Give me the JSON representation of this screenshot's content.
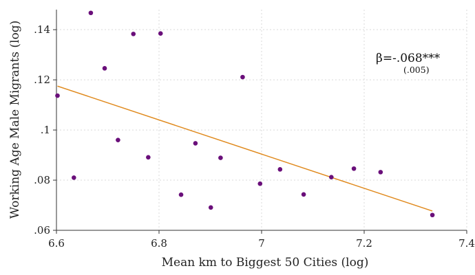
{
  "chart_data": {
    "type": "scatter",
    "xlabel": "Mean km to Biggest 50 Cities (log)",
    "ylabel": "Working Age Male Migrants (log)",
    "xlim": [
      6.6,
      7.4
    ],
    "ylim": [
      0.06,
      0.148
    ],
    "x_ticks": [
      6.6,
      6.8,
      7.0,
      7.2,
      7.4
    ],
    "x_tick_labels": [
      "6.6",
      "6.8",
      "7",
      "7.2",
      "7.4"
    ],
    "y_ticks": [
      0.06,
      0.08,
      0.1,
      0.12,
      0.14
    ],
    "y_tick_labels": [
      ".06",
      ".08",
      ".1",
      ".12",
      ".14"
    ],
    "grid": true,
    "colors": {
      "points": "#6a0f7a",
      "fit_line": "#e08a1e"
    },
    "points": [
      {
        "x": 6.602,
        "y": 0.1137
      },
      {
        "x": 6.634,
        "y": 0.081
      },
      {
        "x": 6.667,
        "y": 0.1467
      },
      {
        "x": 6.694,
        "y": 0.1246
      },
      {
        "x": 6.72,
        "y": 0.096
      },
      {
        "x": 6.75,
        "y": 0.1383
      },
      {
        "x": 6.779,
        "y": 0.0891
      },
      {
        "x": 6.803,
        "y": 0.1385
      },
      {
        "x": 6.843,
        "y": 0.0742
      },
      {
        "x": 6.871,
        "y": 0.0947
      },
      {
        "x": 6.901,
        "y": 0.0691
      },
      {
        "x": 6.92,
        "y": 0.0889
      },
      {
        "x": 6.963,
        "y": 0.1211
      },
      {
        "x": 6.997,
        "y": 0.0786
      },
      {
        "x": 7.036,
        "y": 0.0843
      },
      {
        "x": 7.082,
        "y": 0.0743
      },
      {
        "x": 7.136,
        "y": 0.0812
      },
      {
        "x": 7.18,
        "y": 0.0846
      },
      {
        "x": 7.232,
        "y": 0.0832
      },
      {
        "x": 7.333,
        "y": 0.0661
      }
    ],
    "fit_line": {
      "x": [
        6.602,
        7.333
      ],
      "y": [
        0.1175,
        0.0677
      ]
    },
    "annotations": {
      "beta": "β=-.068***",
      "se": "(.005)"
    }
  }
}
